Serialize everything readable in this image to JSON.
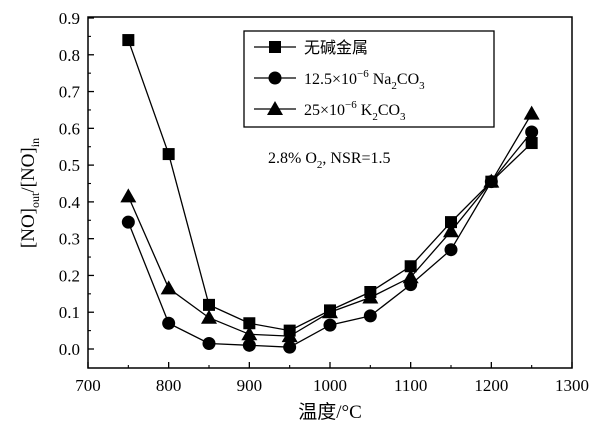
{
  "chart_data": {
    "type": "line",
    "xlabel": "温度/°C",
    "ylabel": "[NO]out/[NO]in",
    "xlim": [
      700,
      1300
    ],
    "ylim": [
      -0.05,
      0.9
    ],
    "x_ticks": [
      700,
      800,
      900,
      1000,
      1100,
      1200,
      1300
    ],
    "x_tick_labels": [
      "700",
      "800",
      "900",
      "1000",
      "1100",
      "1200",
      "1300"
    ],
    "y_ticks": [
      0.0,
      0.1,
      0.2,
      0.3,
      0.4,
      0.5,
      0.6,
      0.7,
      0.8,
      0.9
    ],
    "y_tick_labels": [
      "0.0",
      "0.1",
      "0.2",
      "0.3",
      "0.4",
      "0.5",
      "0.6",
      "0.7",
      "0.8",
      "0.9"
    ],
    "grid": false,
    "legend_position": "top-right",
    "annotation": "2.8% O2, NSR=1.5",
    "x": [
      750,
      800,
      850,
      900,
      950,
      1000,
      1050,
      1100,
      1150,
      1200,
      1250
    ],
    "series": [
      {
        "name": "无碱金属",
        "marker": "square",
        "values": [
          0.84,
          0.53,
          0.12,
          0.07,
          0.05,
          0.105,
          0.155,
          0.225,
          0.345,
          0.455,
          0.56
        ]
      },
      {
        "name": "12.5×10−6 Na2CO3",
        "marker": "circle",
        "values": [
          0.345,
          0.07,
          0.015,
          0.01,
          0.005,
          0.065,
          0.09,
          0.175,
          0.27,
          0.455,
          0.59
        ]
      },
      {
        "name": "25×10−6 K2CO3",
        "marker": "triangle",
        "values": [
          0.415,
          0.165,
          0.085,
          0.04,
          0.035,
          0.1,
          0.14,
          0.195,
          0.32,
          0.455,
          0.64
        ]
      }
    ]
  }
}
